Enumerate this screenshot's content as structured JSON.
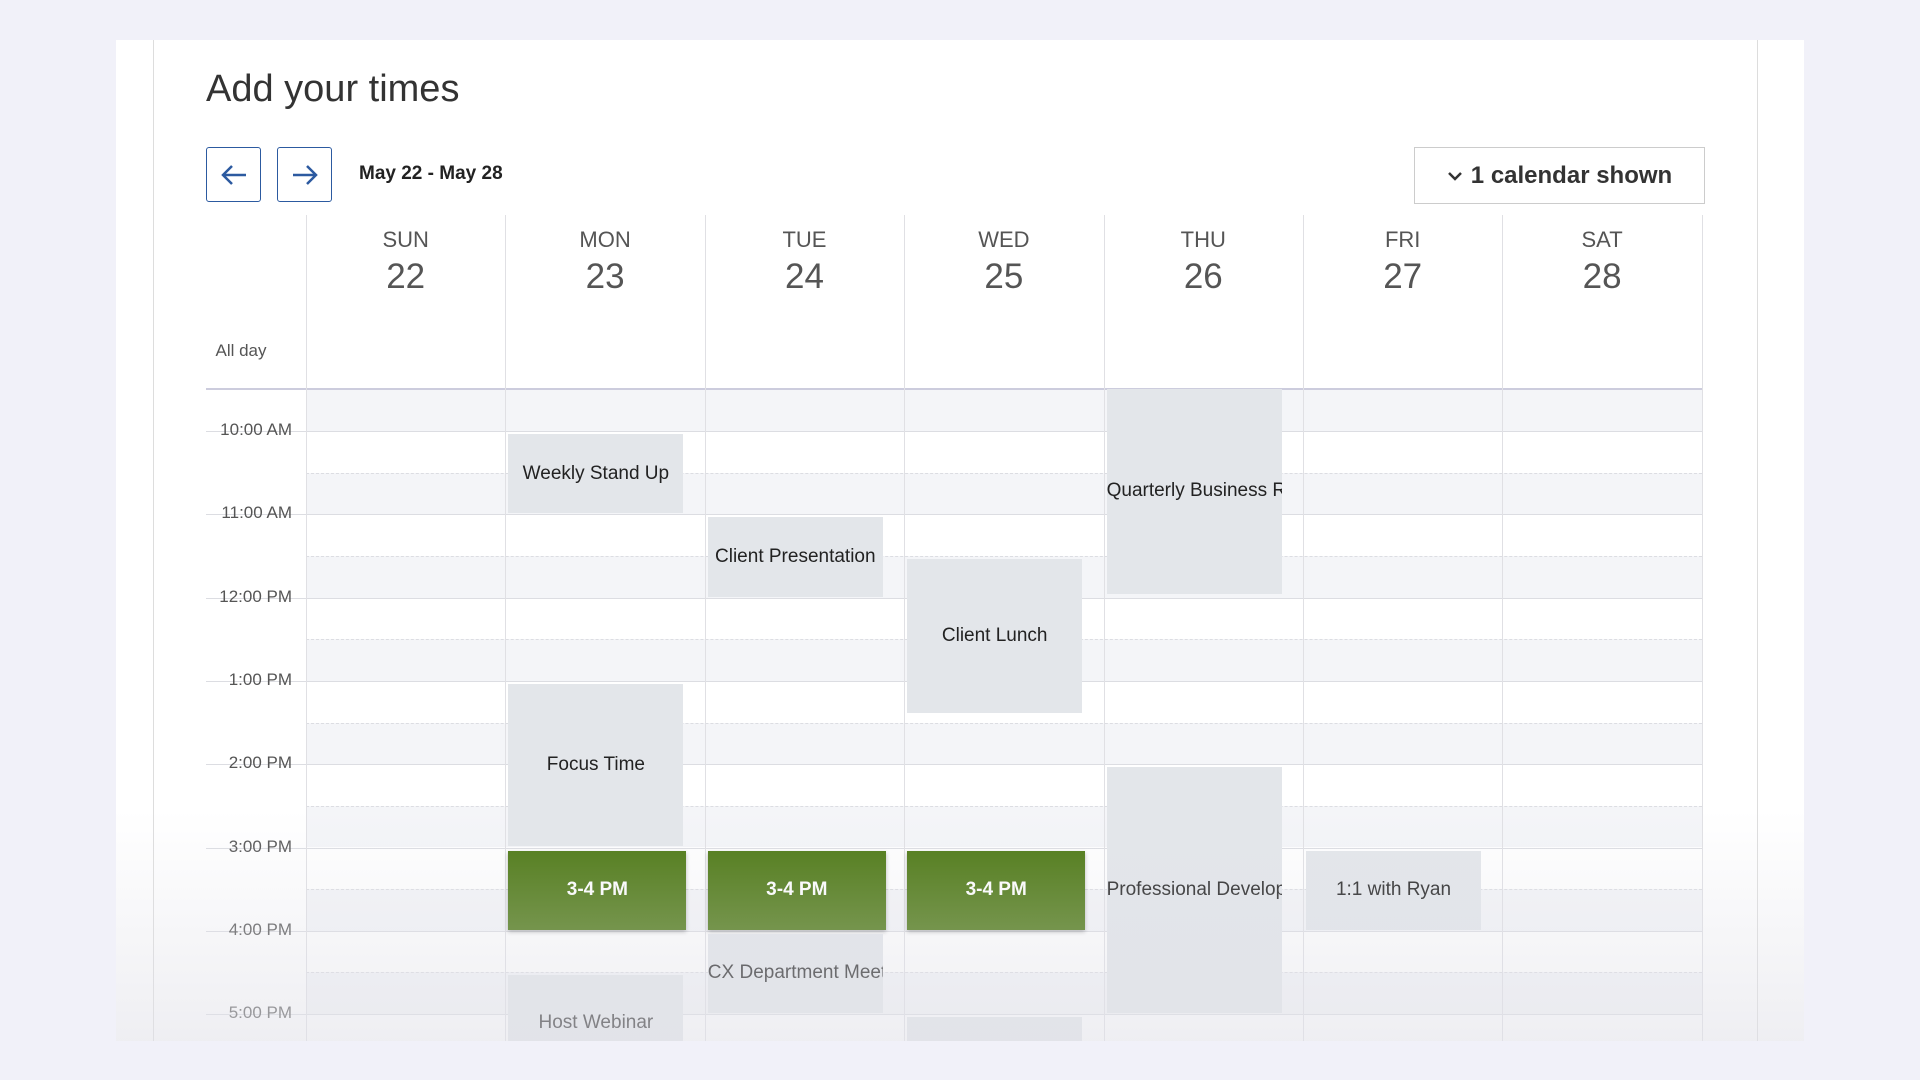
{
  "header": {
    "title": "Add your times"
  },
  "toolbar": {
    "date_range": "May 22 - May 28",
    "calendar_toggle": "1 calendar shown"
  },
  "days": [
    {
      "name": "SUN",
      "date": "22"
    },
    {
      "name": "MON",
      "date": "23"
    },
    {
      "name": "TUE",
      "date": "24"
    },
    {
      "name": "WED",
      "date": "25"
    },
    {
      "name": "THU",
      "date": "26"
    },
    {
      "name": "FRI",
      "date": "27"
    },
    {
      "name": "SAT",
      "date": "28"
    }
  ],
  "all_day_label": "All day",
  "time_labels": [
    "10:00 AM",
    "11:00 AM",
    "12:00 PM",
    "1:00 PM",
    "2:00 PM",
    "3:00 PM",
    "4:00 PM",
    "5:00 PM"
  ],
  "events": [
    {
      "title": "Weekly Stand Up"
    },
    {
      "title": "Client Presentation"
    },
    {
      "title": "Client Lunch"
    },
    {
      "title": "Quarterly Business Review"
    },
    {
      "title": "Focus Time"
    },
    {
      "title": "3-4 PM"
    },
    {
      "title": "3-4 PM"
    },
    {
      "title": "3-4 PM"
    },
    {
      "title": "Professional Development"
    },
    {
      "title": "1:1 with Ryan"
    },
    {
      "title": "CX Department Meeting"
    },
    {
      "title": "Host Webinar"
    },
    {
      "title": ""
    }
  ]
}
